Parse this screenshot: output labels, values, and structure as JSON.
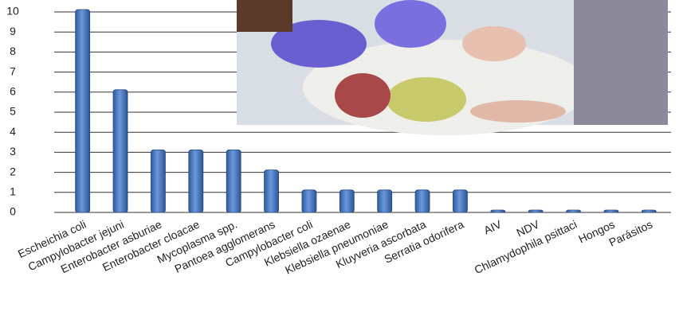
{
  "chart_data": {
    "type": "bar",
    "categories": [
      "Escheichia coli",
      "Campylobacter jejuni",
      "Enterobacter asburiae",
      "Enterobacter cloacae",
      "Mycoplasma spp.",
      "Pantoea agglomerans",
      "Campylobacter coli",
      "Klebsiella ozaenae",
      "Klebsiella pneumoniae",
      "Kluyveria ascorbata",
      "Serratia odorifera",
      "AIV",
      "NDV",
      "Chlamydophila psittaci",
      "Hongos",
      "Parásitos"
    ],
    "values": [
      10,
      6,
      3,
      3,
      3,
      2,
      1,
      1,
      1,
      1,
      1,
      0,
      0,
      0,
      0,
      0
    ],
    "color": "#4a78c2",
    "ylim": [
      0,
      10
    ],
    "yticks": [
      0,
      1,
      2,
      3,
      4,
      5,
      6,
      7,
      8,
      9,
      10
    ],
    "grid": true
  }
}
